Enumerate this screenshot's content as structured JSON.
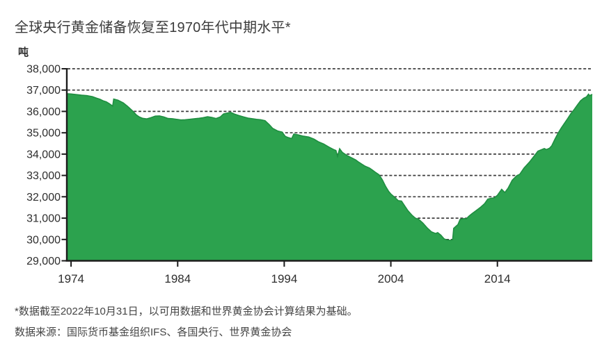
{
  "page": {
    "background": "#ffffff"
  },
  "chart_data": {
    "type": "area",
    "title": "全球央行黄金储备恢复至1970年代中期水平*",
    "unit_label": "吨",
    "xlim": [
      1973.6,
      2022.9
    ],
    "ylim": [
      29000,
      38000
    ],
    "y_tick_step": 1000,
    "y_ticks": [
      29000,
      30000,
      31000,
      32000,
      33000,
      34000,
      35000,
      36000,
      37000,
      38000
    ],
    "x_ticks": [
      1974,
      1984,
      1994,
      2004,
      2014
    ],
    "grid": {
      "horizontal": true,
      "style": "dashed",
      "color": "#3e3e3e"
    },
    "axis_color": "#1c1c1c",
    "label_color": "#2e2e2e",
    "legend": "none",
    "series": [
      {
        "color": "#2CA24E",
        "edge_color": "#1F8E41",
        "points": [
          [
            1973.6,
            36830
          ],
          [
            1974.0,
            36820
          ],
          [
            1974.5,
            36790
          ],
          [
            1975.0,
            36760
          ],
          [
            1975.5,
            36740
          ],
          [
            1976.0,
            36690
          ],
          [
            1976.4,
            36620
          ],
          [
            1976.7,
            36570
          ],
          [
            1977.0,
            36500
          ],
          [
            1977.3,
            36450
          ],
          [
            1977.6,
            36360
          ],
          [
            1977.9,
            36250
          ],
          [
            1978.0,
            36580
          ],
          [
            1978.4,
            36530
          ],
          [
            1978.9,
            36400
          ],
          [
            1979.3,
            36240
          ],
          [
            1979.8,
            36010
          ],
          [
            1980.1,
            35850
          ],
          [
            1980.4,
            35740
          ],
          [
            1980.7,
            35680
          ],
          [
            1981.1,
            35650
          ],
          [
            1981.5,
            35710
          ],
          [
            1981.9,
            35780
          ],
          [
            1982.3,
            35790
          ],
          [
            1982.7,
            35740
          ],
          [
            1983.1,
            35670
          ],
          [
            1983.5,
            35660
          ],
          [
            1983.9,
            35630
          ],
          [
            1984.3,
            35600
          ],
          [
            1984.7,
            35610
          ],
          [
            1985.1,
            35630
          ],
          [
            1985.6,
            35660
          ],
          [
            1986.0,
            35680
          ],
          [
            1986.4,
            35710
          ],
          [
            1986.8,
            35750
          ],
          [
            1987.2,
            35720
          ],
          [
            1987.6,
            35670
          ],
          [
            1988.0,
            35740
          ],
          [
            1988.3,
            35880
          ],
          [
            1988.7,
            35930
          ],
          [
            1989.0,
            35950
          ],
          [
            1989.4,
            35860
          ],
          [
            1989.8,
            35800
          ],
          [
            1990.2,
            35740
          ],
          [
            1990.6,
            35690
          ],
          [
            1991.0,
            35660
          ],
          [
            1991.4,
            35630
          ],
          [
            1991.8,
            35610
          ],
          [
            1992.2,
            35570
          ],
          [
            1992.6,
            35380
          ],
          [
            1992.9,
            35210
          ],
          [
            1993.4,
            35080
          ],
          [
            1993.8,
            35030
          ],
          [
            1994.1,
            34830
          ],
          [
            1994.4,
            34770
          ],
          [
            1994.7,
            34730
          ],
          [
            1994.9,
            34940
          ],
          [
            1995.3,
            34900
          ],
          [
            1995.8,
            34840
          ],
          [
            1996.3,
            34800
          ],
          [
            1996.8,
            34700
          ],
          [
            1997.2,
            34580
          ],
          [
            1997.7,
            34470
          ],
          [
            1998.2,
            34330
          ],
          [
            1998.6,
            34220
          ],
          [
            1998.85,
            34170
          ],
          [
            1999.0,
            33890
          ],
          [
            1999.2,
            34250
          ],
          [
            1999.45,
            34080
          ],
          [
            1999.7,
            34000
          ],
          [
            1999.9,
            33930
          ],
          [
            2000.3,
            33830
          ],
          [
            2000.7,
            33730
          ],
          [
            2001.0,
            33620
          ],
          [
            2001.3,
            33520
          ],
          [
            2001.6,
            33430
          ],
          [
            2002.0,
            33350
          ],
          [
            2002.3,
            33240
          ],
          [
            2002.6,
            33130
          ],
          [
            2002.9,
            33030
          ],
          [
            2003.2,
            32800
          ],
          [
            2003.5,
            32500
          ],
          [
            2003.8,
            32250
          ],
          [
            2004.0,
            32130
          ],
          [
            2004.4,
            31960
          ],
          [
            2004.7,
            31820
          ],
          [
            2005.0,
            31800
          ],
          [
            2005.3,
            31570
          ],
          [
            2005.6,
            31350
          ],
          [
            2006.0,
            31130
          ],
          [
            2006.3,
            31000
          ],
          [
            2006.6,
            30950
          ],
          [
            2007.0,
            30770
          ],
          [
            2007.4,
            30550
          ],
          [
            2007.8,
            30360
          ],
          [
            2008.2,
            30280
          ],
          [
            2008.4,
            30320
          ],
          [
            2008.7,
            30200
          ],
          [
            2009.0,
            30030
          ],
          [
            2009.3,
            29970
          ],
          [
            2009.6,
            29960
          ],
          [
            2009.8,
            29990
          ],
          [
            2009.9,
            30520
          ],
          [
            2010.1,
            30610
          ],
          [
            2010.3,
            30700
          ],
          [
            2010.5,
            30940
          ],
          [
            2010.7,
            30960
          ],
          [
            2010.9,
            30980
          ],
          [
            2011.1,
            30970
          ],
          [
            2011.3,
            31080
          ],
          [
            2011.6,
            31200
          ],
          [
            2012.0,
            31350
          ],
          [
            2012.4,
            31500
          ],
          [
            2012.8,
            31680
          ],
          [
            2013.1,
            31890
          ],
          [
            2013.4,
            31930
          ],
          [
            2013.7,
            31950
          ],
          [
            2014.0,
            32070
          ],
          [
            2014.4,
            32350
          ],
          [
            2014.7,
            32200
          ],
          [
            2015.0,
            32400
          ],
          [
            2015.4,
            32780
          ],
          [
            2015.8,
            32980
          ],
          [
            2016.1,
            33060
          ],
          [
            2016.5,
            33350
          ],
          [
            2017.0,
            33620
          ],
          [
            2017.5,
            33940
          ],
          [
            2017.8,
            34140
          ],
          [
            2018.1,
            34200
          ],
          [
            2018.4,
            34260
          ],
          [
            2018.6,
            34210
          ],
          [
            2018.9,
            34280
          ],
          [
            2019.1,
            34390
          ],
          [
            2019.4,
            34700
          ],
          [
            2019.7,
            34990
          ],
          [
            2020.0,
            35230
          ],
          [
            2020.3,
            35450
          ],
          [
            2020.6,
            35670
          ],
          [
            2020.9,
            35900
          ],
          [
            2021.2,
            36090
          ],
          [
            2021.5,
            36300
          ],
          [
            2021.8,
            36500
          ],
          [
            2022.1,
            36620
          ],
          [
            2022.35,
            36680
          ],
          [
            2022.55,
            36810
          ],
          [
            2022.65,
            36740
          ],
          [
            2022.9,
            36800
          ]
        ]
      }
    ]
  },
  "footer": {
    "note": "*数据截至2022年10月31日，以可用数据和世界黄金协会计算结果为基础。",
    "source": "数据来源：国际货币基金组织IFS、各国央行、世界黄金协会"
  }
}
